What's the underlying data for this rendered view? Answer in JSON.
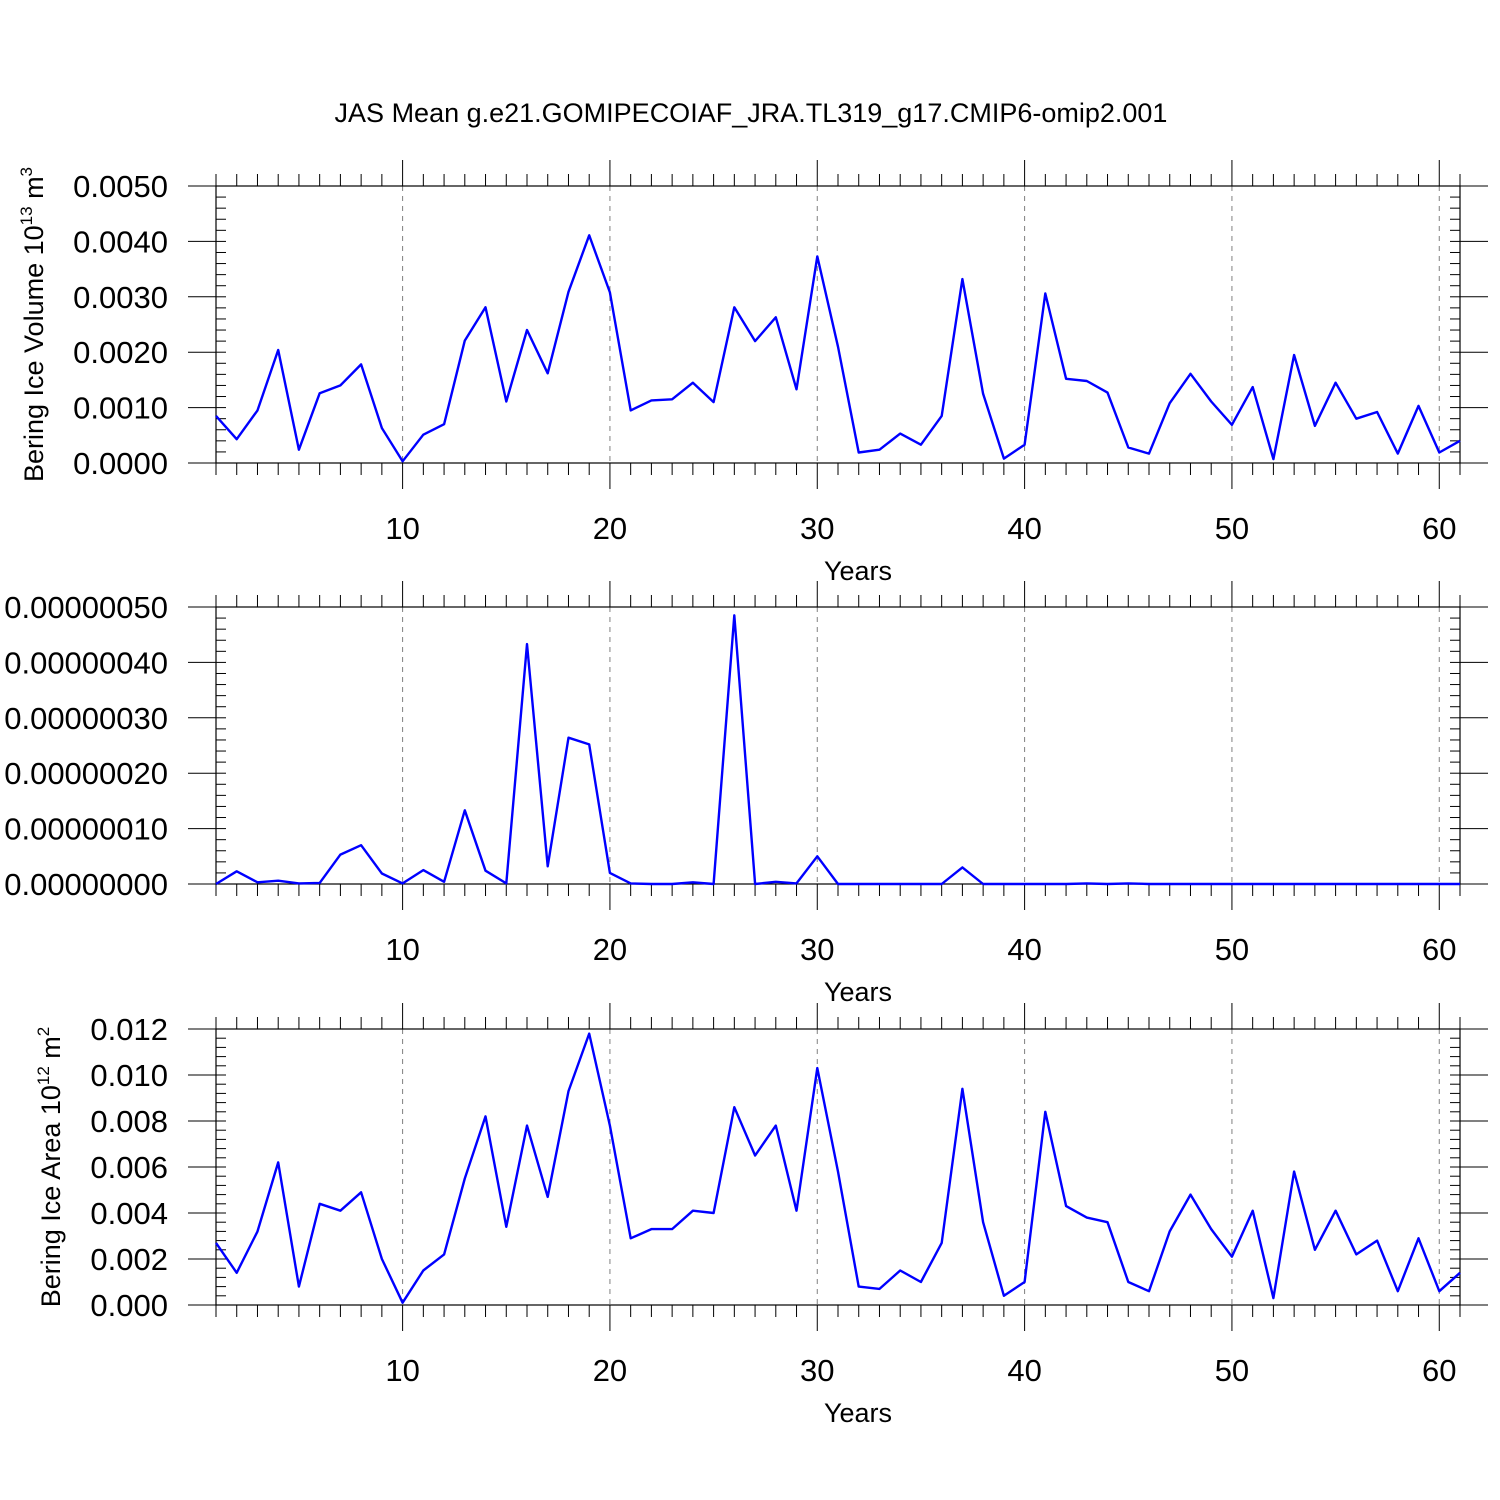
{
  "title": "JAS Mean g.e21.GOMIPECOIAF_JRA.TL319_g17.CMIP6-omip2.001",
  "colors": {
    "series": "#0000ff",
    "axes": "#000000",
    "grid": "#808080"
  },
  "chart_data": [
    {
      "type": "line",
      "xlabel": "Years",
      "ylabel": {
        "main": "Bering Ice Volume 10",
        "sup": "13",
        "unit": " m",
        "unit_sup": "3"
      },
      "xlim": [
        1,
        61
      ],
      "ylim": [
        0,
        0.005
      ],
      "x_ticks": [
        10,
        20,
        30,
        40,
        50,
        60
      ],
      "y_ticks": [
        0,
        0.001,
        0.002,
        0.003,
        0.004,
        0.005
      ],
      "y_tick_labels": [
        "0.0000",
        "0.0010",
        "0.0020",
        "0.0030",
        "0.0040",
        "0.0050"
      ],
      "grid": "dashed vertical at major x ticks",
      "series": [
        {
          "values": [
            0.00085,
            0.00043,
            0.00095,
            0.00204,
            0.00024,
            0.00126,
            0.0014,
            0.00178,
            0.00063,
            3e-05,
            0.00051,
            0.0007,
            0.00221,
            0.00281,
            0.00111,
            0.0024,
            0.00162,
            0.00309,
            0.00411,
            0.00308,
            0.00095,
            0.00113,
            0.00115,
            0.00145,
            0.0011,
            0.00281,
            0.0022,
            0.00263,
            0.00133,
            0.00373,
            0.0021,
            0.00019,
            0.00024,
            0.00053,
            0.00033,
            0.00085,
            0.00332,
            0.00125,
            8e-05,
            0.00033,
            0.00306,
            0.00152,
            0.00148,
            0.00127,
            0.00028,
            0.00017,
            0.00108,
            0.00161,
            0.00111,
            0.00069,
            0.00137,
            7e-05,
            0.00195,
            0.00067,
            0.00145,
            0.0008,
            0.00092,
            0.00017,
            0.00103,
            0.00019,
            0.0004
          ]
        }
      ]
    },
    {
      "type": "line",
      "xlabel": "Years",
      "ylabel": null,
      "xlim": [
        1,
        61
      ],
      "ylim": [
        0,
        5e-07
      ],
      "x_ticks": [
        10,
        20,
        30,
        40,
        50,
        60
      ],
      "y_ticks": [
        0,
        1e-07,
        2e-07,
        3e-07,
        4e-07,
        5e-07
      ],
      "y_tick_labels": [
        "0.00000000",
        "0.00000010",
        "0.00000020",
        "0.00000030",
        "0.00000040",
        "0.00000050"
      ],
      "grid": "dashed vertical at major x ticks",
      "series": [
        {
          "values": [
            0,
            2.3e-08,
            3e-09,
            6e-09,
            1e-09,
            2e-09,
            5.3e-08,
            7e-08,
            1.9e-08,
            1e-09,
            2.5e-08,
            4e-09,
            1.33e-07,
            2.4e-08,
            1e-09,
            4.33e-07,
            3.2e-08,
            2.64e-07,
            2.52e-07,
            2e-08,
            1e-09,
            0,
            0,
            3e-09,
            0,
            4.85e-07,
            0,
            4e-09,
            1e-09,
            5e-08,
            0,
            0,
            0,
            0,
            0,
            0,
            3e-08,
            0,
            0,
            0,
            0,
            0,
            1e-09,
            0,
            1e-09,
            0,
            0,
            0,
            0,
            0,
            0,
            0,
            0,
            0,
            0,
            0,
            0,
            0,
            0,
            0,
            0
          ]
        }
      ]
    },
    {
      "type": "line",
      "xlabel": "Years",
      "ylabel": {
        "main": "Bering Ice Area 10",
        "sup": "12",
        "unit": " m",
        "unit_sup": "2"
      },
      "xlim": [
        1,
        61
      ],
      "ylim": [
        0,
        0.012
      ],
      "x_ticks": [
        10,
        20,
        30,
        40,
        50,
        60
      ],
      "y_ticks": [
        0,
        0.002,
        0.004,
        0.006,
        0.008,
        0.01,
        0.012
      ],
      "y_tick_labels": [
        "0.000",
        "0.002",
        "0.004",
        "0.006",
        "0.008",
        "0.010",
        "0.012"
      ],
      "grid": "dashed vertical at major x ticks",
      "series": [
        {
          "values": [
            0.0027,
            0.0014,
            0.0032,
            0.0062,
            0.0008,
            0.0044,
            0.0041,
            0.0049,
            0.002,
            0.0001,
            0.0015,
            0.0022,
            0.0055,
            0.0082,
            0.0034,
            0.0078,
            0.0047,
            0.0093,
            0.0118,
            0.0078,
            0.0029,
            0.0033,
            0.0033,
            0.0041,
            0.004,
            0.0086,
            0.0065,
            0.0078,
            0.0041,
            0.0103,
            0.0058,
            0.0008,
            0.0007,
            0.0015,
            0.001,
            0.0027,
            0.0094,
            0.0036,
            0.0004,
            0.001,
            0.0084,
            0.0043,
            0.0038,
            0.0036,
            0.001,
            0.0006,
            0.0032,
            0.0048,
            0.0033,
            0.0021,
            0.0041,
            0.0003,
            0.0058,
            0.0024,
            0.0041,
            0.0022,
            0.0028,
            0.0006,
            0.0029,
            0.0006,
            0.0014
          ]
        }
      ]
    }
  ]
}
